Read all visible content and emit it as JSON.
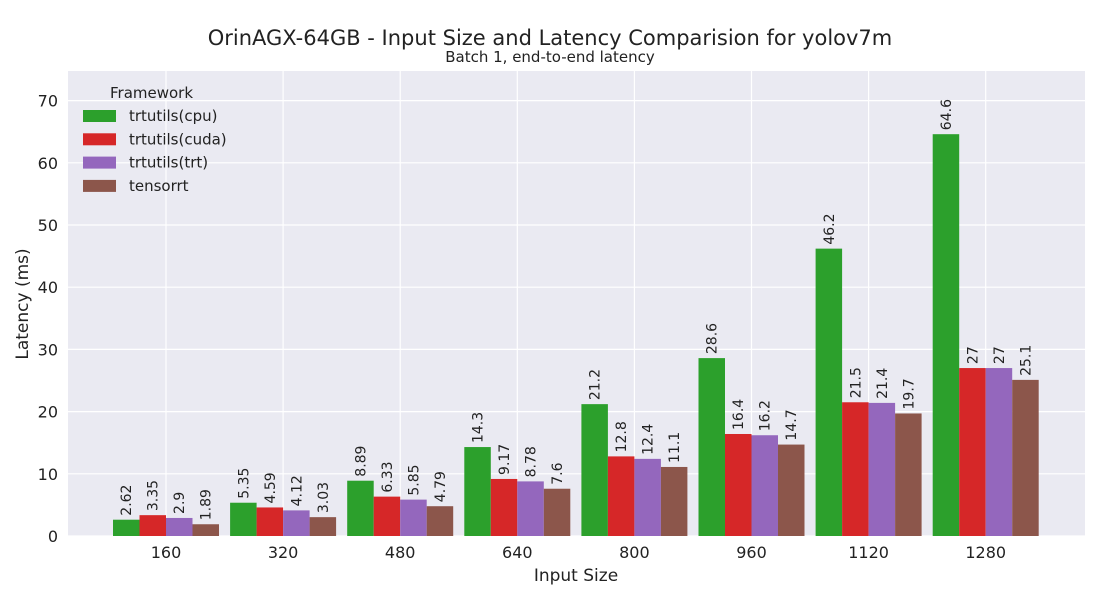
{
  "chart_data": {
    "type": "bar",
    "title": "OrinAGX-64GB - Input Size and Latency Comparision for yolov7m",
    "subtitle": "Batch 1, end-to-end latency",
    "xlabel": "Input Size",
    "ylabel": "Latency (ms)",
    "ylim": [
      0,
      75
    ],
    "yticks": [
      0,
      10,
      20,
      30,
      40,
      50,
      60,
      70
    ],
    "grid": true,
    "legend_title": "Framework",
    "legend_position": "top-left",
    "categories": [
      "160",
      "320",
      "480",
      "640",
      "800",
      "960",
      "1120",
      "1280"
    ],
    "series": [
      {
        "name": "trtutils(cpu)",
        "color": "#2ca02c",
        "values": [
          2.62,
          5.35,
          8.89,
          14.3,
          21.2,
          28.6,
          46.2,
          64.6
        ],
        "labels": [
          "2.62",
          "5.35",
          "8.89",
          "14.3",
          "21.2",
          "28.6",
          "46.2",
          "64.6"
        ]
      },
      {
        "name": "trtutils(cuda)",
        "color": "#d62728",
        "values": [
          3.35,
          4.59,
          6.33,
          9.17,
          12.8,
          16.4,
          21.5,
          27
        ],
        "labels": [
          "3.35",
          "4.59",
          "6.33",
          "9.17",
          "12.8",
          "16.4",
          "21.5",
          "27"
        ]
      },
      {
        "name": "trtutils(trt)",
        "color": "#9467bd",
        "values": [
          2.9,
          4.12,
          5.85,
          8.78,
          12.4,
          16.2,
          21.4,
          27
        ],
        "labels": [
          "2.9",
          "4.12",
          "5.85",
          "8.78",
          "12.4",
          "16.2",
          "21.4",
          "27"
        ]
      },
      {
        "name": "tensorrt",
        "color": "#8c564b",
        "values": [
          1.89,
          3.03,
          4.79,
          7.6,
          11.1,
          14.7,
          19.7,
          25.1
        ],
        "labels": [
          "1.89",
          "3.03",
          "4.79",
          "7.6",
          "11.1",
          "14.7",
          "19.7",
          "25.1"
        ]
      }
    ]
  }
}
